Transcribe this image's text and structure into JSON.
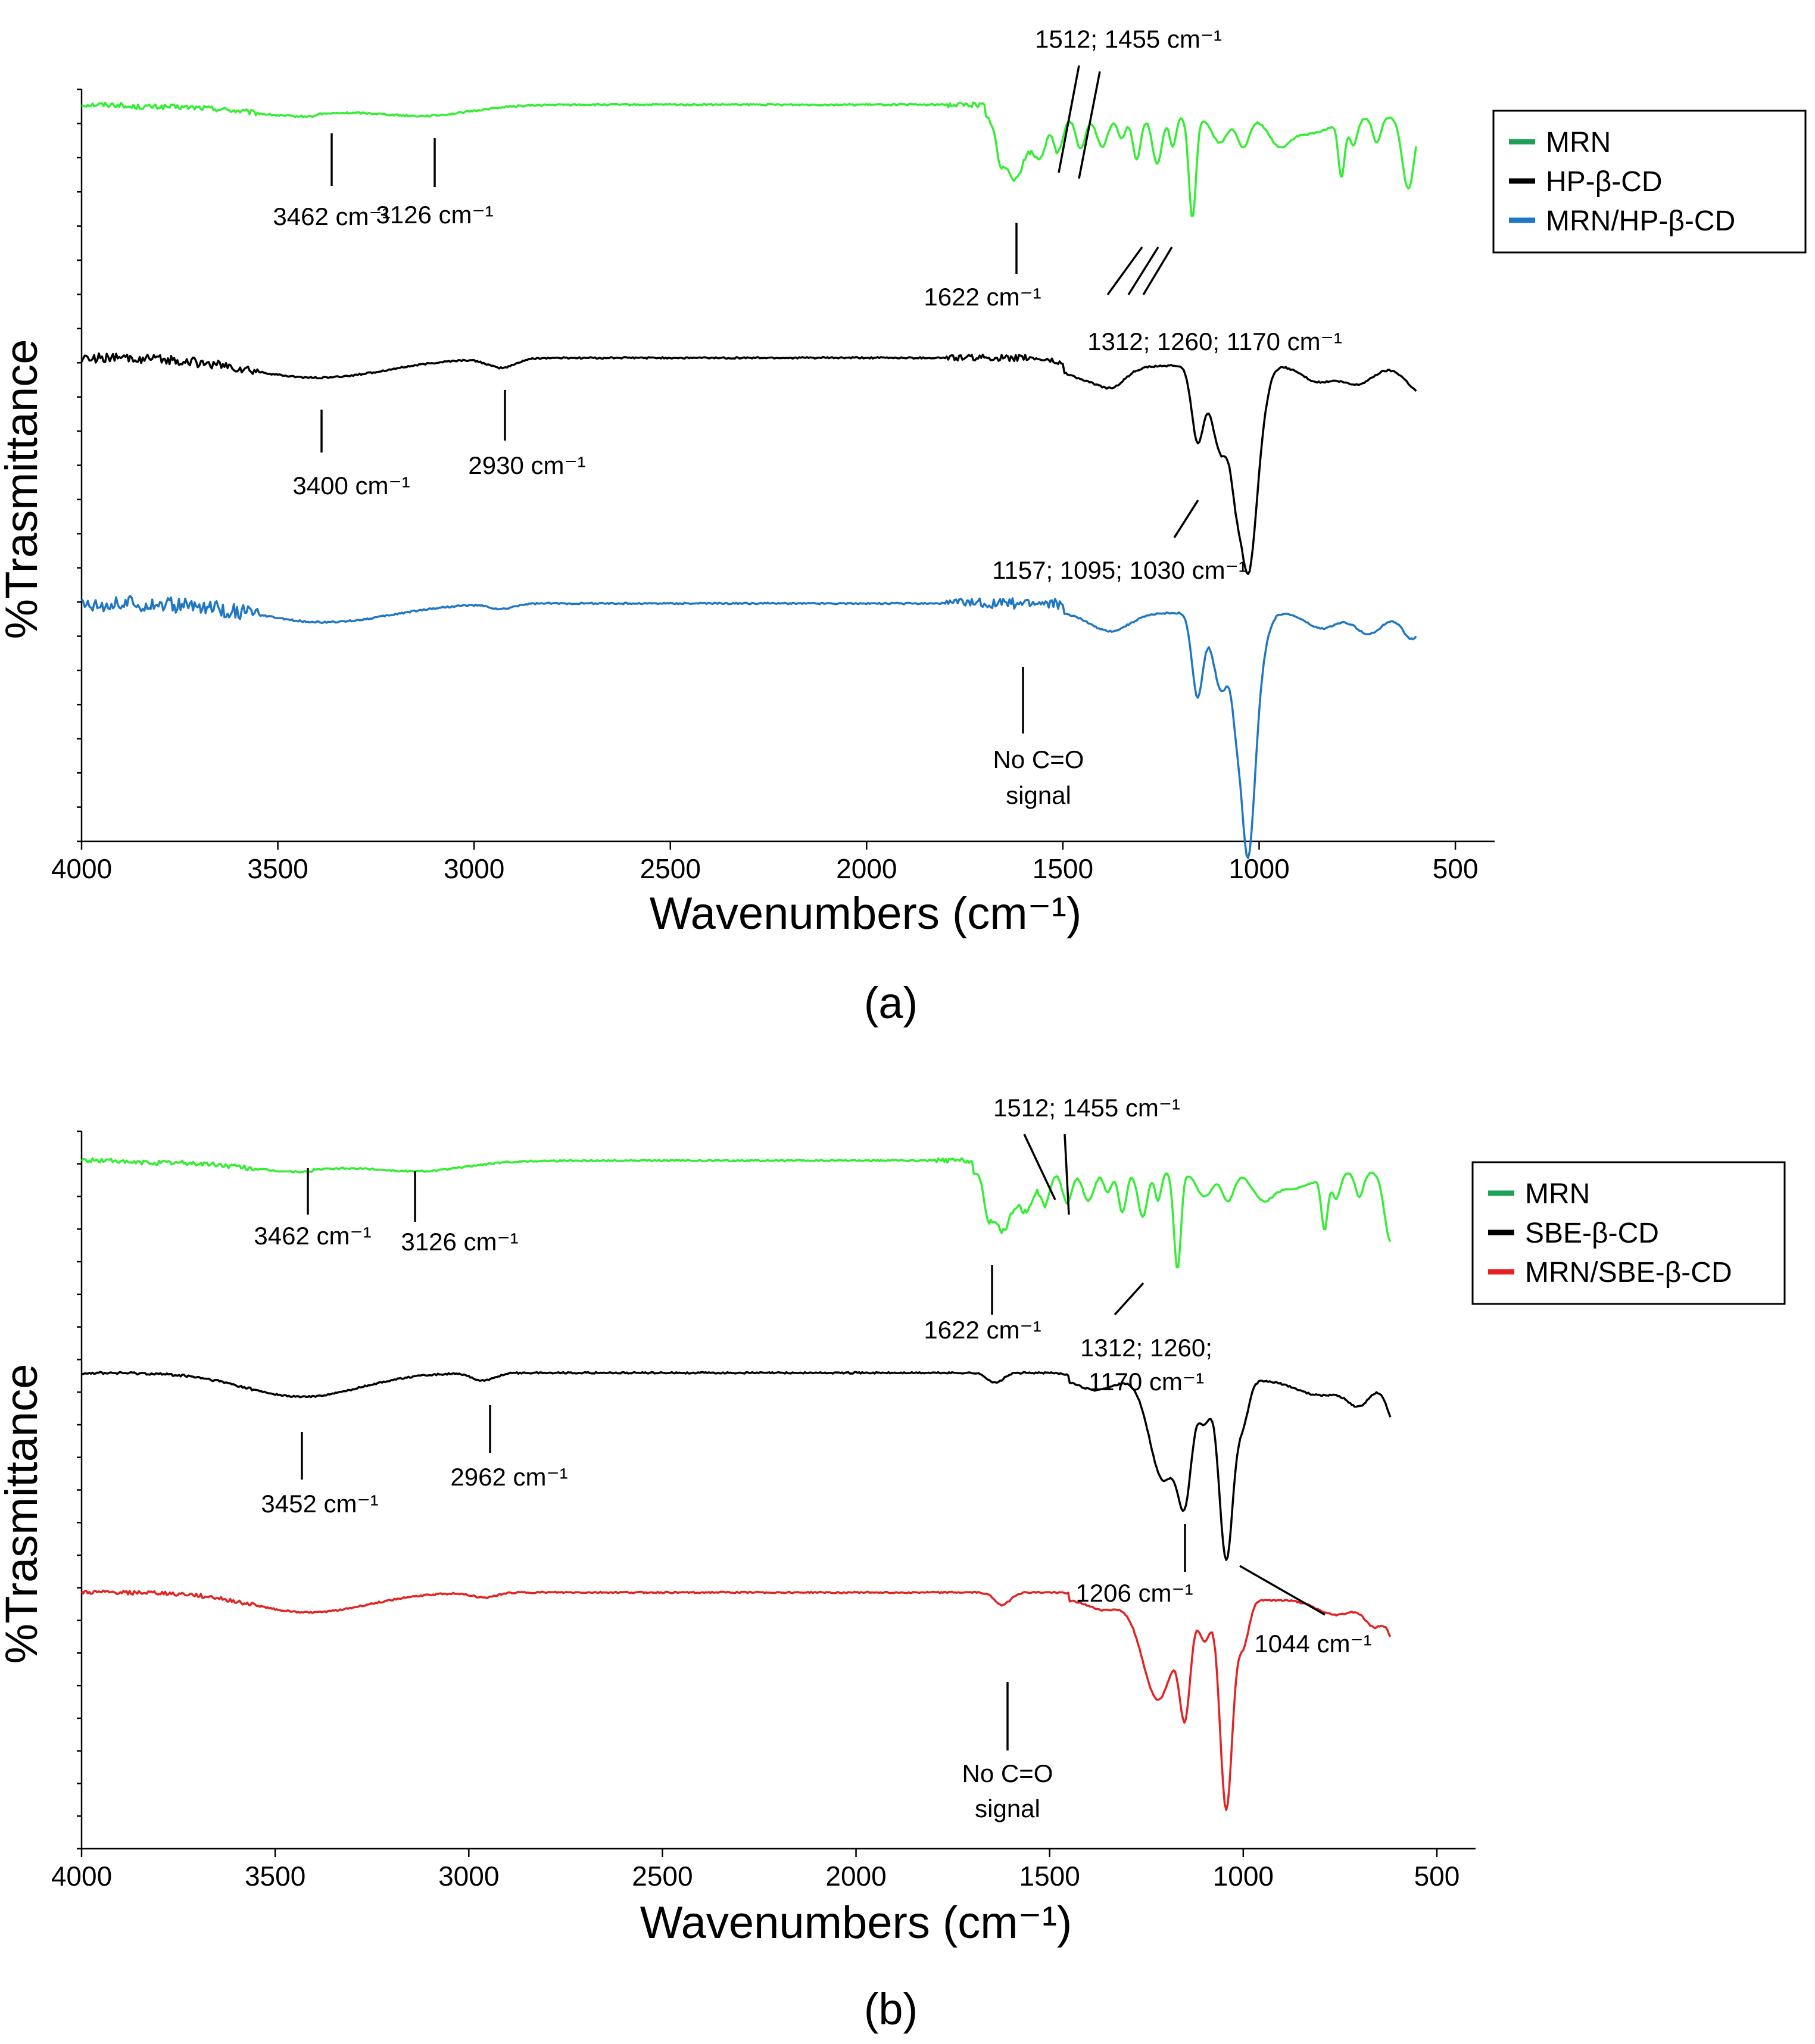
{
  "chart_data": [
    {
      "type": "line",
      "panel_label": "(a)",
      "xlabel": "Wavenumbers (cm⁻¹)",
      "ylabel": "%Trasmittance",
      "xlim": [
        4000,
        400
      ],
      "x_ticks": [
        4000,
        3500,
        3000,
        2500,
        2000,
        1500,
        1000,
        500
      ],
      "y_offsets": [
        0.2,
        3.5,
        6.7
      ],
      "ylim": [
        0,
        9.8
      ],
      "legend": [
        {
          "name": "MRN",
          "color": "#1fa058"
        },
        {
          "name": "HP-β-CD",
          "color": "#000000"
        },
        {
          "name": "MRN/HP-β-CD",
          "color": "#1f77c4"
        }
      ],
      "series": [
        {
          "name": "MRN",
          "color": "#33ee33",
          "profile": "MRN"
        },
        {
          "name": "HP-β-CD",
          "color": "#000000",
          "profile": "HP"
        },
        {
          "name": "MRN/HP-β-CD",
          "color": "#1f77c4",
          "profile": "MIX_HP"
        }
      ],
      "annotations": [
        {
          "text": "3462 cm⁻¹",
          "series": 0,
          "x": 3462
        },
        {
          "text": "3126 cm⁻¹",
          "series": 0,
          "x": 3126
        },
        {
          "text": "1512; 1455 cm⁻¹",
          "series": 0,
          "x": 1480
        },
        {
          "text": "1622 cm⁻¹",
          "series": 0,
          "x": 1622
        },
        {
          "text": "1312; 1260; 1170 cm⁻¹",
          "series": 0,
          "x": 1260
        },
        {
          "text": "3400 cm⁻¹",
          "series": 1,
          "x": 3400
        },
        {
          "text": "2930 cm⁻¹",
          "series": 1,
          "x": 2930
        },
        {
          "text": "1157; 1095; 1030 cm⁻¹",
          "series": 1,
          "x": 1157
        },
        {
          "text": "No C=O",
          "series": 2,
          "x": 1622
        },
        {
          "text": "signal",
          "series": 2,
          "x": 1622
        }
      ]
    },
    {
      "type": "line",
      "panel_label": "(b)",
      "xlabel": "Wavenumbers (cm⁻¹)",
      "ylabel": "%Trasmittance",
      "xlim": [
        4000,
        400
      ],
      "x_ticks": [
        4000,
        3500,
        3000,
        2500,
        2000,
        1500,
        1000,
        500
      ],
      "y_offsets": [
        0.4,
        3.3,
        6.3
      ],
      "ylim": [
        0,
        9.8
      ],
      "legend": [
        {
          "name": "MRN",
          "color": "#1fa058"
        },
        {
          "name": "SBE-β-CD",
          "color": "#000000"
        },
        {
          "name": "MRN/SBE-β-CD",
          "color": "#e32222"
        }
      ],
      "series": [
        {
          "name": "MRN",
          "color": "#33ee33",
          "profile": "MRN"
        },
        {
          "name": "SBE-β-CD",
          "color": "#000000",
          "profile": "SBE"
        },
        {
          "name": "MRN/SBE-β-CD",
          "color": "#e32222",
          "profile": "MIX_SBE"
        }
      ],
      "annotations": [
        {
          "text": "3462 cm⁻¹",
          "series": 0,
          "x": 3462
        },
        {
          "text": "3126 cm⁻¹",
          "series": 0,
          "x": 3126
        },
        {
          "text": "1512; 1455 cm⁻¹",
          "series": 0,
          "x": 1480
        },
        {
          "text": "1622 cm⁻¹",
          "series": 0,
          "x": 1622
        },
        {
          "text": "1312; 1260;",
          "series": 0,
          "x": 1260
        },
        {
          "text": "1170 cm⁻¹",
          "series": 0,
          "x": 1170
        },
        {
          "text": "3452 cm⁻¹",
          "series": 1,
          "x": 3452
        },
        {
          "text": "2962 cm⁻¹",
          "series": 1,
          "x": 2962
        },
        {
          "text": "1206 cm⁻¹",
          "series": 1,
          "x": 1206
        },
        {
          "text": "1044 cm⁻¹",
          "series": 1,
          "x": 1044
        },
        {
          "text": "No C=O",
          "series": 2,
          "x": 1622
        },
        {
          "text": "signal",
          "series": 2,
          "x": 1622
        }
      ]
    }
  ]
}
